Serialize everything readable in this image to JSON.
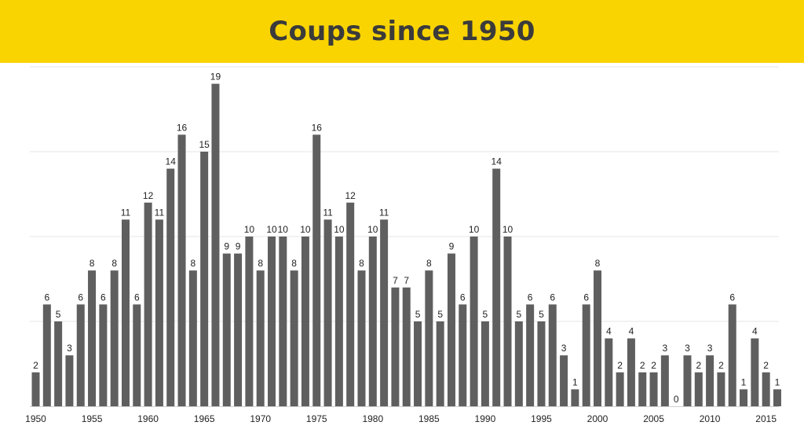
{
  "header": {
    "title": "Coups since 1950",
    "background": "#f9d400",
    "title_color": "#3b3b3b"
  },
  "chart_data": {
    "type": "bar",
    "title": "Coups since 1950",
    "xlabel": "",
    "ylabel": "",
    "bar_color": "#5f5f5f",
    "grid": true,
    "ylim": [
      0,
      20
    ],
    "x_tick_labels": [
      "1950",
      "1955",
      "1960",
      "1965",
      "1970",
      "1975",
      "1980",
      "1985",
      "1990",
      "1995",
      "2000",
      "2005",
      "2010",
      "2015"
    ],
    "categories": [
      1950,
      1951,
      1952,
      1953,
      1954,
      1955,
      1956,
      1957,
      1958,
      1959,
      1960,
      1961,
      1962,
      1963,
      1964,
      1965,
      1966,
      1967,
      1968,
      1969,
      1970,
      1971,
      1972,
      1973,
      1974,
      1975,
      1976,
      1977,
      1978,
      1979,
      1980,
      1981,
      1982,
      1983,
      1984,
      1985,
      1986,
      1987,
      1988,
      1989,
      1990,
      1991,
      1992,
      1993,
      1994,
      1995,
      1996,
      1997,
      1998,
      1999,
      2000,
      2001,
      2002,
      2003,
      2004,
      2005,
      2006,
      2007,
      2008,
      2009,
      2010,
      2011,
      2012,
      2013,
      2014,
      2015,
      2016
    ],
    "values": [
      2,
      6,
      5,
      3,
      6,
      8,
      6,
      8,
      11,
      6,
      12,
      11,
      14,
      16,
      8,
      15,
      19,
      9,
      9,
      10,
      8,
      10,
      10,
      8,
      10,
      16,
      11,
      10,
      12,
      8,
      10,
      11,
      7,
      7,
      5,
      8,
      5,
      9,
      6,
      10,
      5,
      14,
      10,
      5,
      6,
      5,
      6,
      3,
      1,
      6,
      8,
      4,
      2,
      4,
      2,
      2,
      3,
      0,
      3,
      2,
      3,
      2,
      6,
      1,
      4,
      2,
      1
    ]
  }
}
